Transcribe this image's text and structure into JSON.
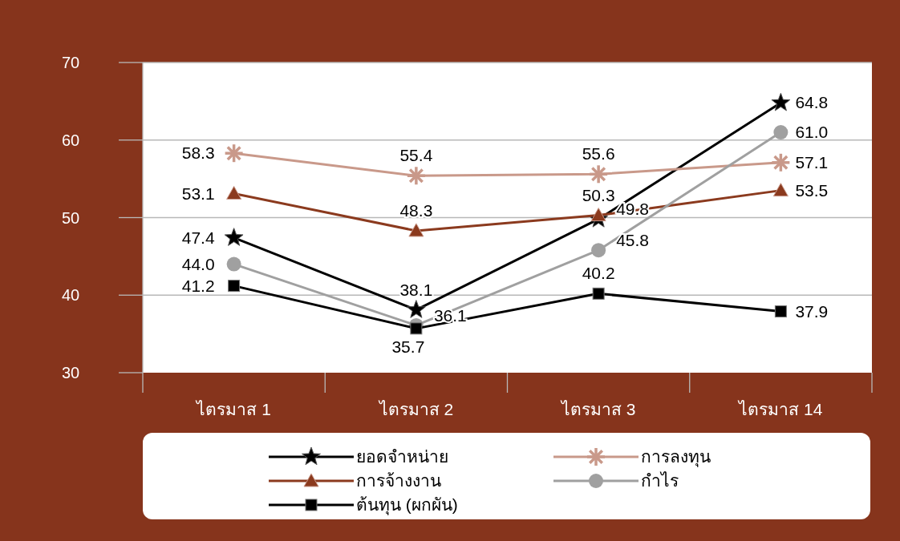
{
  "chart_data": {
    "type": "line",
    "categories": [
      "ไตรมาส 1",
      "ไตรมาส 2",
      "ไตรมาส 3",
      "ไตรมาส 14"
    ],
    "series": [
      {
        "name": "ยอดจำหน่าย",
        "color": "#000000",
        "marker": "star",
        "values": [
          47.4,
          38.1,
          49.8,
          64.8
        ],
        "value_labels": [
          "47.4",
          "38.1",
          "49.8",
          "64.8"
        ]
      },
      {
        "name": "การลงทุน",
        "color": "#c9998a",
        "marker": "cross",
        "values": [
          58.3,
          55.4,
          55.6,
          57.1
        ],
        "value_labels": [
          "58.3",
          "55.4",
          "55.6",
          "57.1"
        ]
      },
      {
        "name": "การจ้างงาน",
        "color": "#8b3a1e",
        "marker": "triangle",
        "values": [
          53.1,
          48.3,
          50.3,
          53.5
        ],
        "value_labels": [
          "53.1",
          "48.3",
          "50.3",
          "53.5"
        ]
      },
      {
        "name": "กำไร",
        "color": "#a0a0a0",
        "marker": "circle",
        "values": [
          44.0,
          36.1,
          45.8,
          61.0
        ],
        "value_labels": [
          "44.0",
          "36.1",
          "45.8",
          "61.0"
        ]
      },
      {
        "name": "ต้นทุน (ผกผัน)",
        "color": "#000000",
        "marker": "square",
        "values": [
          41.2,
          35.7,
          40.2,
          37.9
        ],
        "value_labels": [
          "41.2",
          "35.7",
          "40.2",
          "37.9"
        ]
      }
    ],
    "ylim": [
      30,
      70
    ],
    "yticks": [
      30,
      40,
      50,
      60,
      70
    ],
    "grid": "y",
    "legend": "bottom"
  }
}
